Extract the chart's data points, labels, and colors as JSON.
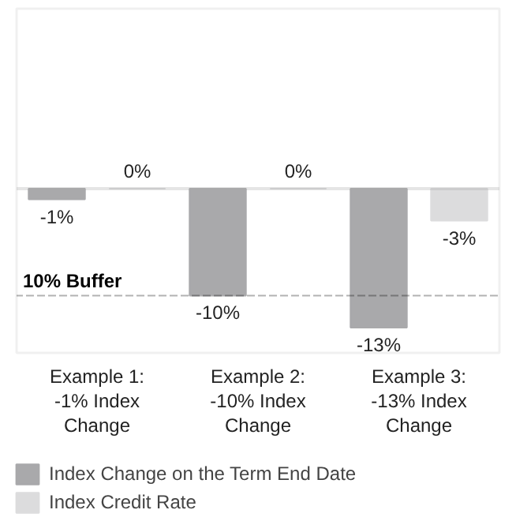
{
  "chart_data": {
    "type": "bar",
    "categories": [
      "Example 1:\n-1% Index\nChange",
      "Example 2:\n-10% Index\nChange",
      "Example 3:\n-13% Index\nChange"
    ],
    "series": [
      {
        "name": "Index Change on the Term End Date",
        "color": "#a9a9ab",
        "values": [
          -1,
          -10,
          -13
        ],
        "value_labels": [
          "-1%",
          "-10%",
          "-13%"
        ]
      },
      {
        "name": "Index Credit Rate",
        "color": "#dcdcdd",
        "values": [
          0,
          0,
          -3
        ],
        "value_labels": [
          "0%",
          "0%",
          "-3%"
        ]
      }
    ],
    "ref_lines": [
      {
        "axis": "y",
        "value": -10,
        "label": "10% Buffer",
        "line_style": "dashed",
        "color": "#000000"
      }
    ],
    "legend": "bottom"
  }
}
